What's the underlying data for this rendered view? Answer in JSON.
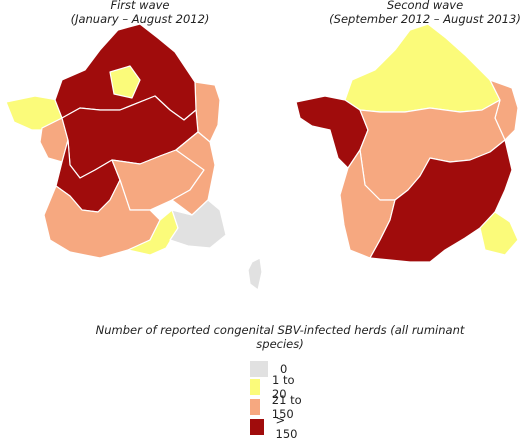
{
  "colors": {
    "zero": "#e1e1e1",
    "low": "#fbfb7a",
    "mid": "#f6a880",
    "high": "#a00c0c",
    "border": "#ffffff"
  },
  "maps": [
    {
      "title": "First wave",
      "subtitle": "(January – August 2012)"
    },
    {
      "title": "Second wave",
      "subtitle": "(September 2012 – August 2013)"
    }
  ],
  "legend": {
    "title": "Number of reported congenital SBV-infected herds (all ruminant species)",
    "items": [
      {
        "label": "0",
        "color": "#e1e1e1"
      },
      {
        "label": "1 to 20",
        "color": "#fbfb7a"
      },
      {
        "label": "21 to 150",
        "color": "#f6a880"
      },
      {
        "label": "> 150",
        "color": "#a00c0c"
      }
    ]
  }
}
